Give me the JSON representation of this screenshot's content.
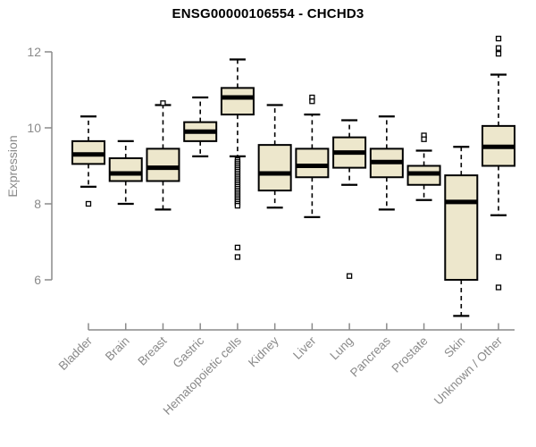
{
  "header": {
    "title": "ENSG00000106554 - CHCHD3"
  },
  "chart_data": {
    "type": "boxplot",
    "title": "ENSG00000106554 - CHCHD3",
    "xlabel": "",
    "ylabel": "Expression",
    "yticks": [
      6,
      8,
      10,
      12
    ],
    "ylim": [
      4.8,
      12.6
    ],
    "grid": false,
    "legend": "none",
    "categories": [
      "Bladder",
      "Brain",
      "Breast",
      "Gastric",
      "Hematopoietic cells",
      "Kidney",
      "Liver",
      "Lung",
      "Pancreas",
      "Prostate",
      "Skin",
      "Unknown / Other"
    ],
    "series": [
      {
        "name": "Bladder",
        "whisker_low": 8.45,
        "q1": 9.05,
        "median": 9.3,
        "q3": 9.65,
        "whisker_high": 10.3,
        "outliers": [
          8.0
        ]
      },
      {
        "name": "Brain",
        "whisker_low": 8.0,
        "q1": 8.6,
        "median": 8.8,
        "q3": 9.2,
        "whisker_high": 9.65,
        "outliers": []
      },
      {
        "name": "Breast",
        "whisker_low": 7.85,
        "q1": 8.6,
        "median": 8.95,
        "q3": 9.45,
        "whisker_high": 10.6,
        "outliers": [
          10.65
        ]
      },
      {
        "name": "Gastric",
        "whisker_low": 9.25,
        "q1": 9.65,
        "median": 9.9,
        "q3": 10.15,
        "whisker_high": 10.8,
        "outliers": []
      },
      {
        "name": "Hematopoietic cells",
        "whisker_low": 9.25,
        "q1": 10.35,
        "median": 10.8,
        "q3": 11.05,
        "whisker_high": 11.8,
        "outliers": [
          9.15,
          9.1,
          9.05,
          9.0,
          8.95,
          8.9,
          8.85,
          8.8,
          8.75,
          8.7,
          8.65,
          8.6,
          8.55,
          8.5,
          8.45,
          8.4,
          8.35,
          8.3,
          8.25,
          8.2,
          8.15,
          8.1,
          8.05,
          8.0,
          7.95,
          6.85,
          6.6
        ]
      },
      {
        "name": "Kidney",
        "whisker_low": 7.9,
        "q1": 8.35,
        "median": 8.8,
        "q3": 9.55,
        "whisker_high": 10.6,
        "outliers": []
      },
      {
        "name": "Liver",
        "whisker_low": 7.65,
        "q1": 8.7,
        "median": 9.0,
        "q3": 9.45,
        "whisker_high": 10.35,
        "outliers": [
          10.8,
          10.7
        ]
      },
      {
        "name": "Lung",
        "whisker_low": 8.5,
        "q1": 8.95,
        "median": 9.35,
        "q3": 9.75,
        "whisker_high": 10.2,
        "outliers": [
          6.1
        ]
      },
      {
        "name": "Pancreas",
        "whisker_low": 7.85,
        "q1": 8.7,
        "median": 9.1,
        "q3": 9.45,
        "whisker_high": 10.3,
        "outliers": []
      },
      {
        "name": "Prostate",
        "whisker_low": 8.1,
        "q1": 8.5,
        "median": 8.8,
        "q3": 9.0,
        "whisker_high": 9.4,
        "outliers": [
          9.8,
          9.7
        ]
      },
      {
        "name": "Skin",
        "whisker_low": 5.05,
        "q1": 6.0,
        "median": 8.05,
        "q3": 8.75,
        "whisker_high": 9.5,
        "outliers": []
      },
      {
        "name": "Unknown / Other",
        "whisker_low": 7.7,
        "q1": 9.0,
        "median": 9.5,
        "q3": 10.05,
        "whisker_high": 11.4,
        "outliers": [
          12.35,
          12.1,
          11.95,
          6.6,
          5.8
        ]
      }
    ],
    "colors": {
      "box_fill": "#EDE7CC",
      "box_border": "#000000",
      "median": "#000000",
      "whisker": "#000000",
      "axis": "#8a8a8a",
      "tick_label": "#8a8a8a",
      "title": "#000000",
      "background": "#ffffff"
    }
  }
}
